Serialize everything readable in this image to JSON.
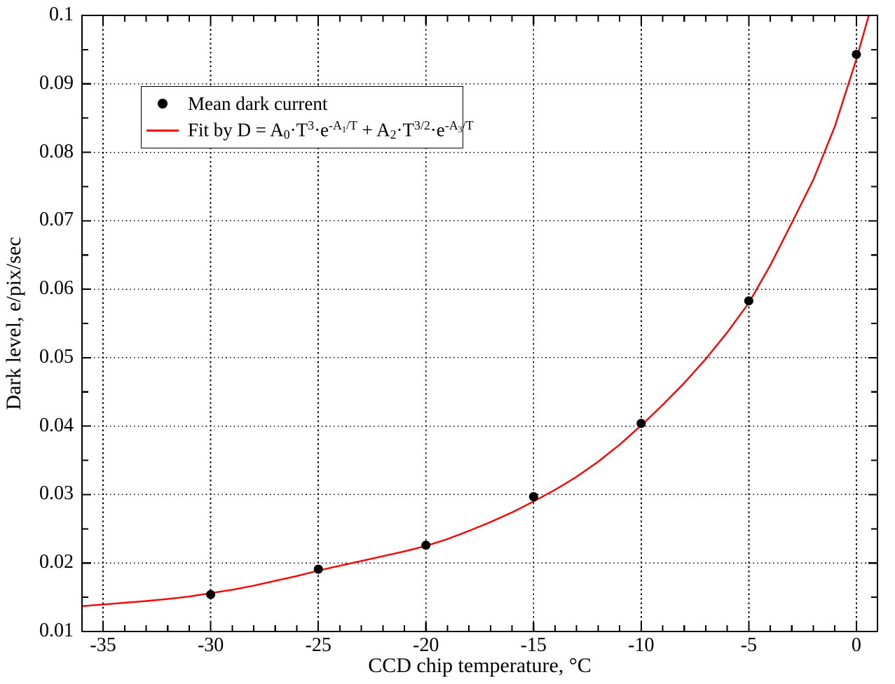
{
  "page": {
    "background": "#ffffff",
    "text_color": "#000000"
  },
  "chart_data": {
    "type": "scatter",
    "title": "",
    "xlabel": "CCD chip temperature, °C",
    "ylabel": "Dark level, e/pix/sec",
    "xlim": [
      -35.98,
      0.98
    ],
    "ylim": [
      0.01,
      0.1
    ],
    "grid": "dotted-at-major-ticks",
    "frame": "box-with-inward-ticks-all-sides",
    "legend_position": "upper-left-inside",
    "x_ticks": [
      {
        "v": -35,
        "label": "-35"
      },
      {
        "v": -30,
        "label": "-30"
      },
      {
        "v": -25,
        "label": "-25"
      },
      {
        "v": -20,
        "label": "-20"
      },
      {
        "v": -15,
        "label": "-15"
      },
      {
        "v": -10,
        "label": "-10"
      },
      {
        "v": -5,
        "label": "-5"
      },
      {
        "v": 0,
        "label": "0"
      }
    ],
    "x_minor_step": 1,
    "y_ticks": [
      {
        "v": 0.01,
        "label": "0.01"
      },
      {
        "v": 0.02,
        "label": "0.02"
      },
      {
        "v": 0.03,
        "label": "0.03"
      },
      {
        "v": 0.04,
        "label": "0.04"
      },
      {
        "v": 0.05,
        "label": "0.05"
      },
      {
        "v": 0.06,
        "label": "0.06"
      },
      {
        "v": 0.07,
        "label": "0.07"
      },
      {
        "v": 0.08,
        "label": "0.08"
      },
      {
        "v": 0.09,
        "label": "0.09"
      },
      {
        "v": 0.1,
        "label": "0.1"
      }
    ],
    "y_minor_step": 0.005,
    "series": [
      {
        "name": "Mean dark current",
        "kind": "scatter",
        "marker": "filled-circle",
        "color": "#000000",
        "points": [
          [
            -30,
            0.0154
          ],
          [
            -25,
            0.0191
          ],
          [
            -20,
            0.0226
          ],
          [
            -15,
            0.0297
          ],
          [
            -10,
            0.0404
          ],
          [
            -5,
            0.0583
          ],
          [
            0,
            0.0943
          ]
        ]
      },
      {
        "name": "Fit by D = A0*T^3*e^(-A1/T) + A2*T^(3/2)*e^(-A3/T)",
        "kind": "line",
        "color": "#ff0000",
        "points": [
          [
            -36,
            0.0137
          ],
          [
            -35,
            0.01395
          ],
          [
            -34,
            0.0142
          ],
          [
            -33,
            0.01445
          ],
          [
            -32,
            0.01475
          ],
          [
            -31,
            0.0151
          ],
          [
            -30,
            0.0156
          ],
          [
            -29,
            0.0161
          ],
          [
            -28,
            0.0167
          ],
          [
            -27,
            0.0174
          ],
          [
            -26,
            0.0181
          ],
          [
            -25,
            0.0189
          ],
          [
            -24,
            0.0196
          ],
          [
            -23,
            0.0203
          ],
          [
            -22,
            0.021
          ],
          [
            -21,
            0.0217
          ],
          [
            -20,
            0.0225
          ],
          [
            -19,
            0.0235
          ],
          [
            -18,
            0.0247
          ],
          [
            -17,
            0.026
          ],
          [
            -16,
            0.0274
          ],
          [
            -15,
            0.029
          ],
          [
            -14,
            0.0307
          ],
          [
            -13,
            0.0326
          ],
          [
            -12,
            0.0348
          ],
          [
            -11,
            0.0373
          ],
          [
            -10,
            0.0401
          ],
          [
            -9,
            0.0431
          ],
          [
            -8,
            0.0463
          ],
          [
            -7,
            0.0498
          ],
          [
            -6,
            0.0537
          ],
          [
            -5,
            0.058
          ],
          [
            -4,
            0.0635
          ],
          [
            -3,
            0.0697
          ],
          [
            -2,
            0.076
          ],
          [
            -1,
            0.0838
          ],
          [
            0,
            0.0936
          ],
          [
            0.98,
            0.1045
          ]
        ]
      }
    ]
  },
  "legend": {
    "items": [
      {
        "label": "Mean dark current",
        "marker": "dot",
        "color": "#000000"
      },
      {
        "label_plain": "Fit by D = A0*T^3*e^(-A1/T) + A2*T^(3/2)*e^(-A3/T)",
        "marker": "line",
        "color": "#ff0000",
        "label_segments": [
          {
            "t": "Fit by D = A",
            "c": "n"
          },
          {
            "t": "0",
            "c": "sub"
          },
          {
            "t": "·T",
            "c": "n"
          },
          {
            "t": "3",
            "c": "sup"
          },
          {
            "t": "·e",
            "c": "n"
          },
          {
            "t": "-A",
            "c": "sup"
          },
          {
            "t": "1",
            "c": "supsub"
          },
          {
            "t": "/T",
            "c": "sup"
          },
          {
            "t": " + A",
            "c": "n"
          },
          {
            "t": "2",
            "c": "sub"
          },
          {
            "t": "·T",
            "c": "n"
          },
          {
            "t": "3/2",
            "c": "sup"
          },
          {
            "t": "·e",
            "c": "n"
          },
          {
            "t": "-A",
            "c": "sup"
          },
          {
            "t": "3",
            "c": "supsub"
          },
          {
            "t": "/T",
            "c": "sup"
          }
        ]
      }
    ]
  },
  "style_colors": {
    "fit_line": "#ff0000",
    "scatter_marker": "#000000",
    "grid": "#000000",
    "frame": "#000000"
  }
}
